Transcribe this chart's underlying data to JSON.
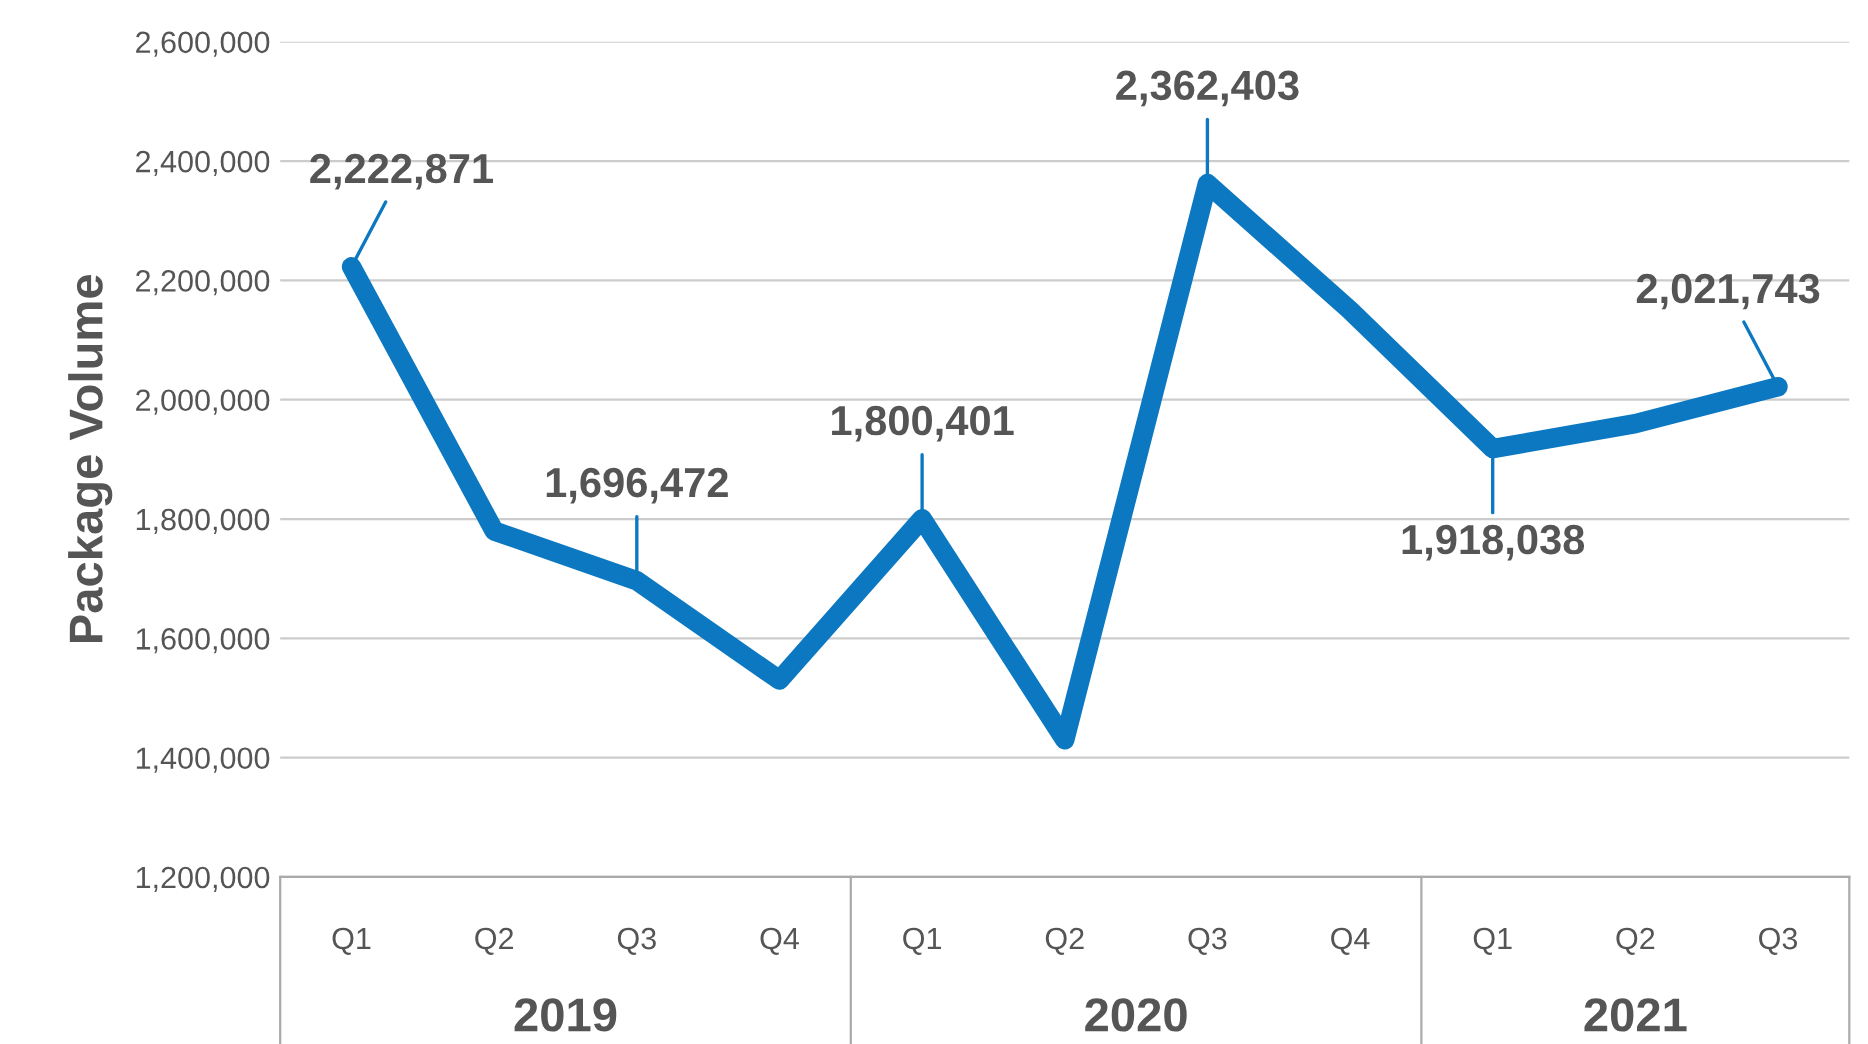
{
  "chart_data": {
    "type": "line",
    "ylabel": "Package Volume",
    "categories": [
      "Q1",
      "Q2",
      "Q3",
      "Q4",
      "Q1",
      "Q2",
      "Q3",
      "Q4",
      "Q1",
      "Q2",
      "Q3"
    ],
    "series": [
      {
        "color": "#0b78c1",
        "values": [
          2222871,
          1780000,
          1696472,
          1530000,
          1800401,
          1430000,
          2362403,
          2150000,
          1918038,
          1960000,
          2021743
        ],
        "value_labels": [
          "2,222,871",
          null,
          "1,696,472",
          null,
          "1,800,401",
          null,
          "2,362,403",
          null,
          "1,918,038",
          null,
          "2,021,743"
        ]
      }
    ],
    "annotations": [
      "2019",
      "2020",
      "2021"
    ],
    "ylim": [
      1200000,
      2600000
    ],
    "yticks": [
      {
        "value": 1200000,
        "label": "1,200,000"
      },
      {
        "value": 1400000,
        "label": "1,400,000"
      },
      {
        "value": 1600000,
        "label": "1,600,000"
      },
      {
        "value": 1800000,
        "label": "1,800,000"
      },
      {
        "value": 2000000,
        "label": "2,000,000"
      },
      {
        "value": 2200000,
        "label": "2,200,000"
      },
      {
        "value": 2400000,
        "label": "2,400,000"
      },
      {
        "value": 2600000,
        "label": "2,600,000"
      }
    ],
    "grid": "y",
    "legend": false,
    "marker": "none",
    "line_style": "solid"
  }
}
